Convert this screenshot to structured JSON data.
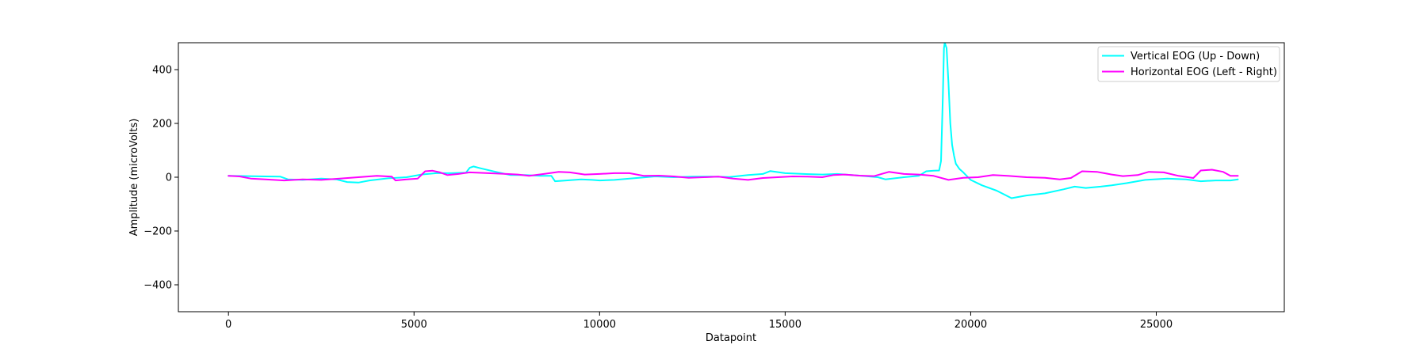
{
  "chart_data": {
    "type": "line",
    "title": "",
    "xlabel": "Datapoint",
    "ylabel": "Amplitude (microVolts)",
    "xlim": [
      -1350,
      28450
    ],
    "ylim": [
      -500,
      500
    ],
    "xticks": [
      0,
      5000,
      10000,
      15000,
      20000,
      25000
    ],
    "yticks": [
      -400,
      -200,
      0,
      200,
      400
    ],
    "xtick_labels": [
      "0",
      "5000",
      "10000",
      "15000",
      "20000",
      "25000"
    ],
    "ytick_labels": [
      "−400",
      "−200",
      "0",
      "200",
      "400"
    ],
    "grid": false,
    "legend_position": "top-right",
    "series": [
      {
        "name": "Vertical EOG (Up - Down)",
        "color": "#00ffff",
        "points": [
          [
            0,
            5
          ],
          [
            500,
            4
          ],
          [
            1000,
            3
          ],
          [
            1400,
            2
          ],
          [
            1600,
            -8
          ],
          [
            2000,
            -10
          ],
          [
            2500,
            -5
          ],
          [
            2900,
            -8
          ],
          [
            3200,
            -18
          ],
          [
            3500,
            -20
          ],
          [
            3800,
            -12
          ],
          [
            4300,
            -4
          ],
          [
            4800,
            0
          ],
          [
            5200,
            10
          ],
          [
            5600,
            15
          ],
          [
            6000,
            15
          ],
          [
            6400,
            17
          ],
          [
            6500,
            35
          ],
          [
            6600,
            40
          ],
          [
            6800,
            33
          ],
          [
            7200,
            20
          ],
          [
            7600,
            8
          ],
          [
            8000,
            8
          ],
          [
            8400,
            5
          ],
          [
            8700,
            5
          ],
          [
            8800,
            -15
          ],
          [
            9100,
            -12
          ],
          [
            9500,
            -8
          ],
          [
            9800,
            -10
          ],
          [
            10000,
            -12
          ],
          [
            10400,
            -10
          ],
          [
            11000,
            -3
          ],
          [
            11500,
            3
          ],
          [
            12000,
            0
          ],
          [
            12500,
            2
          ],
          [
            13000,
            2
          ],
          [
            13500,
            1
          ],
          [
            14000,
            8
          ],
          [
            14400,
            12
          ],
          [
            14600,
            23
          ],
          [
            15000,
            15
          ],
          [
            15500,
            12
          ],
          [
            16000,
            10
          ],
          [
            16400,
            12
          ],
          [
            17000,
            6
          ],
          [
            17500,
            0
          ],
          [
            17700,
            -8
          ],
          [
            18200,
            0
          ],
          [
            18600,
            5
          ],
          [
            18800,
            22
          ],
          [
            19000,
            24
          ],
          [
            19150,
            25
          ],
          [
            19200,
            60
          ],
          [
            19250,
            300
          ],
          [
            19280,
            480
          ],
          [
            19300,
            500
          ],
          [
            19350,
            480
          ],
          [
            19400,
            350
          ],
          [
            19450,
            200
          ],
          [
            19500,
            120
          ],
          [
            19550,
            80
          ],
          [
            19600,
            50
          ],
          [
            19700,
            30
          ],
          [
            19800,
            18
          ],
          [
            20000,
            -10
          ],
          [
            20300,
            -30
          ],
          [
            20700,
            -50
          ],
          [
            21100,
            -78
          ],
          [
            21500,
            -68
          ],
          [
            22000,
            -60
          ],
          [
            22500,
            -45
          ],
          [
            22800,
            -35
          ],
          [
            23100,
            -40
          ],
          [
            23500,
            -35
          ],
          [
            23800,
            -30
          ],
          [
            24200,
            -22
          ],
          [
            24700,
            -10
          ],
          [
            25300,
            -5
          ],
          [
            25800,
            -8
          ],
          [
            26200,
            -15
          ],
          [
            26600,
            -12
          ],
          [
            27000,
            -12
          ],
          [
            27200,
            -8
          ]
        ]
      },
      {
        "name": "Horizontal EOG (Left - Right)",
        "color": "#ff00ff",
        "points": [
          [
            0,
            5
          ],
          [
            300,
            3
          ],
          [
            600,
            -5
          ],
          [
            1000,
            -8
          ],
          [
            1500,
            -12
          ],
          [
            2000,
            -8
          ],
          [
            2500,
            -10
          ],
          [
            3000,
            -5
          ],
          [
            3500,
            0
          ],
          [
            4000,
            5
          ],
          [
            4400,
            2
          ],
          [
            4500,
            -12
          ],
          [
            4800,
            -8
          ],
          [
            5100,
            -5
          ],
          [
            5300,
            22
          ],
          [
            5500,
            24
          ],
          [
            5700,
            18
          ],
          [
            5900,
            8
          ],
          [
            6200,
            12
          ],
          [
            6500,
            18
          ],
          [
            7000,
            15
          ],
          [
            7500,
            12
          ],
          [
            7800,
            10
          ],
          [
            8100,
            5
          ],
          [
            8500,
            12
          ],
          [
            8900,
            20
          ],
          [
            9200,
            18
          ],
          [
            9600,
            10
          ],
          [
            10000,
            12
          ],
          [
            10400,
            15
          ],
          [
            10800,
            15
          ],
          [
            11200,
            5
          ],
          [
            11600,
            6
          ],
          [
            12000,
            3
          ],
          [
            12400,
            -2
          ],
          [
            12800,
            0
          ],
          [
            13200,
            2
          ],
          [
            13600,
            -5
          ],
          [
            14000,
            -10
          ],
          [
            14400,
            -3
          ],
          [
            14800,
            0
          ],
          [
            15200,
            3
          ],
          [
            15600,
            2
          ],
          [
            16000,
            0
          ],
          [
            16300,
            8
          ],
          [
            16600,
            10
          ],
          [
            17000,
            6
          ],
          [
            17400,
            4
          ],
          [
            17800,
            20
          ],
          [
            18200,
            12
          ],
          [
            18600,
            10
          ],
          [
            19000,
            5
          ],
          [
            19400,
            -10
          ],
          [
            19800,
            -2
          ],
          [
            20200,
            0
          ],
          [
            20600,
            8
          ],
          [
            21000,
            5
          ],
          [
            21500,
            0
          ],
          [
            22000,
            -2
          ],
          [
            22400,
            -8
          ],
          [
            22700,
            -3
          ],
          [
            23000,
            22
          ],
          [
            23400,
            20
          ],
          [
            23800,
            10
          ],
          [
            24100,
            4
          ],
          [
            24500,
            8
          ],
          [
            24800,
            20
          ],
          [
            25200,
            18
          ],
          [
            25600,
            5
          ],
          [
            26000,
            -3
          ],
          [
            26200,
            25
          ],
          [
            26500,
            28
          ],
          [
            26800,
            20
          ],
          [
            27000,
            5
          ],
          [
            27200,
            5
          ]
        ]
      }
    ]
  }
}
